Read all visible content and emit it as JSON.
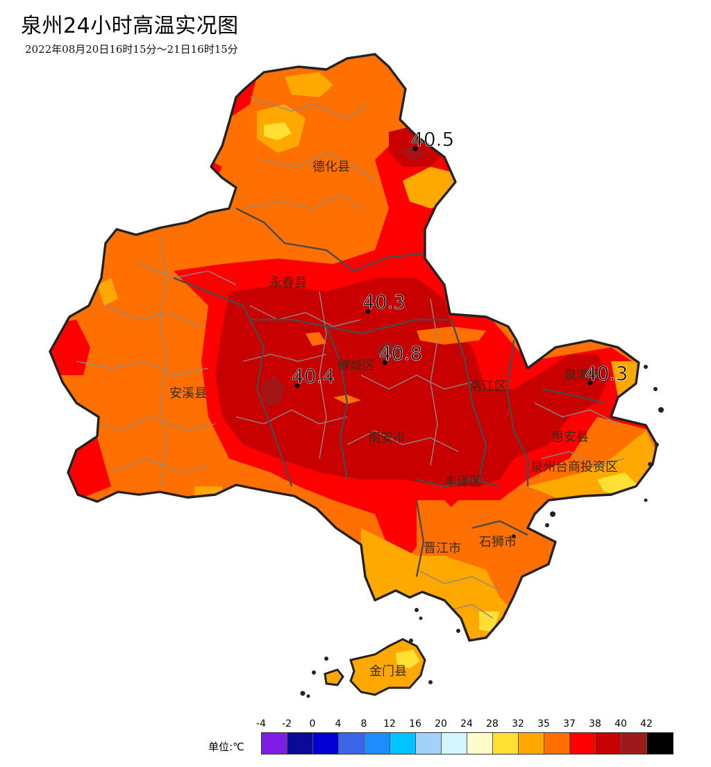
{
  "title": "泉州24小时高温实况图",
  "subtitle": "2022年08月20日16时15分～21日16时15分",
  "colors": {
    "c28_32": "#fffccc",
    "c32_35": "#ffe033",
    "c35_37": "#ffa800",
    "c37_38": "#ff7000",
    "c38_40": "#ff0000",
    "c40_42": "#c80000",
    "c42_plus": "#9c1a1a",
    "boundary": "#222222",
    "town_line": "#8a8a8a"
  },
  "districts": [
    {
      "id": "dehua",
      "label": "德化县"
    },
    {
      "id": "yongchun",
      "label": "永春县"
    },
    {
      "id": "anxi",
      "label": "安溪县"
    },
    {
      "id": "nanan",
      "label": "南安市"
    },
    {
      "id": "licheng",
      "label": "鲤城区"
    },
    {
      "id": "luojiang",
      "label": "洛江区"
    },
    {
      "id": "quangang",
      "label": "泉港区"
    },
    {
      "id": "huian",
      "label": "惠安县"
    },
    {
      "id": "taishang",
      "label": "泉州台商投资区"
    },
    {
      "id": "fengze",
      "label": "丰泽区"
    },
    {
      "id": "jinjiang",
      "label": "晋江市"
    },
    {
      "id": "shishi",
      "label": "石狮市"
    },
    {
      "id": "jinmen",
      "label": "金门县"
    }
  ],
  "stations": [
    {
      "id": "dehua-max",
      "value": "40.5"
    },
    {
      "id": "yongchun-max",
      "value": "40.3"
    },
    {
      "id": "licheng-max",
      "value": "40.8"
    },
    {
      "id": "anxi-max",
      "value": "40.4"
    },
    {
      "id": "quangang-max",
      "value": "40.3"
    }
  ],
  "legend": {
    "unit_label": "单位:℃",
    "ticks": [
      "-4",
      "-2",
      "0",
      "4",
      "8",
      "12",
      "16",
      "20",
      "24",
      "28",
      "32",
      "35",
      "37",
      "38",
      "40",
      "42"
    ],
    "swatches": [
      "#7d1ee6",
      "#0a0a96",
      "#0000d2",
      "#3c64e6",
      "#1e8cff",
      "#00c3ff",
      "#a0d2fa",
      "#d2f5ff",
      "#fffccc",
      "#ffe033",
      "#ffa800",
      "#ff7000",
      "#ff0000",
      "#c80000",
      "#9c1a1a",
      "#000000"
    ]
  }
}
